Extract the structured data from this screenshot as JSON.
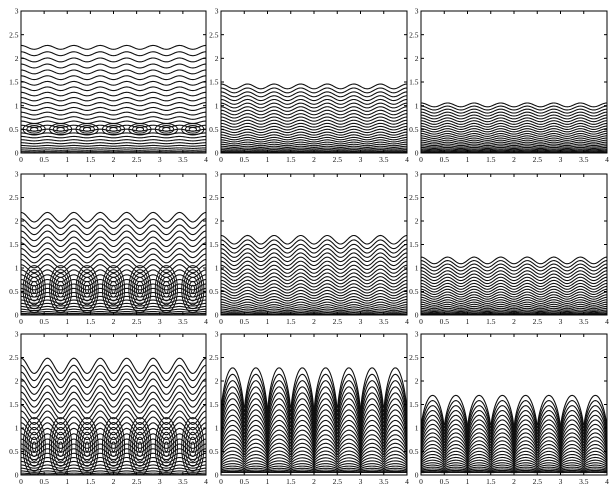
{
  "figure": {
    "rows": 3,
    "cols": 3
  },
  "colors": {
    "line": "#111111",
    "frame": "#000000",
    "background": "#ffffff"
  },
  "chart_data": [
    {
      "type": "line",
      "panel": "row1-col1",
      "xlim": [
        0,
        4
      ],
      "ylim": [
        0,
        3
      ],
      "xticks": [
        "0",
        "0.5",
        "1",
        "1.5",
        "2",
        "2.5",
        "3",
        "3.5",
        "4"
      ],
      "yticks": [
        "0",
        "0.5",
        "1",
        "1.5",
        "2",
        "2.5",
        "3"
      ],
      "contour_family": "streamlines",
      "top_level": 2.3,
      "line_count": 26,
      "periods": 7,
      "wave_amplitude": 0.04,
      "closed_cells": true,
      "cell_center_y": 0.5
    },
    {
      "type": "line",
      "panel": "row1-col2",
      "xlim": [
        0,
        4
      ],
      "ylim": [
        0,
        3
      ],
      "xticks": [
        "0",
        "0.5",
        "1",
        "1.5",
        "2",
        "2.5",
        "3",
        "3.5",
        "4"
      ],
      "yticks": [
        "0",
        "0.5",
        "1",
        "1.5",
        "2",
        "2.5",
        "3"
      ],
      "contour_family": "streamlines",
      "top_level": 1.45,
      "line_count": 26,
      "periods": 7,
      "wave_amplitude": 0.05,
      "closed_cells": false
    },
    {
      "type": "line",
      "panel": "row1-col3",
      "xlim": [
        0,
        4
      ],
      "ylim": [
        0,
        3
      ],
      "xticks": [
        "0",
        "0.5",
        "1",
        "1.5",
        "2",
        "2.5",
        "3",
        "3.5",
        "4"
      ],
      "yticks": [
        "0",
        "0.5",
        "1",
        "1.5",
        "2",
        "2.5",
        "3"
      ],
      "contour_family": "streamlines",
      "top_level": 1.05,
      "line_count": 24,
      "periods": 7,
      "wave_amplitude": 0.04,
      "closed_cells": false
    },
    {
      "type": "line",
      "panel": "row2-col1",
      "xlim": [
        0,
        4
      ],
      "ylim": [
        0,
        3
      ],
      "xticks": [
        "0",
        "0.5",
        "1",
        "1.5",
        "2",
        "2.5",
        "3",
        "3.5",
        "4"
      ],
      "yticks": [
        "0",
        "0.5",
        "1",
        "1.5",
        "2",
        "2.5",
        "3"
      ],
      "contour_family": "streamlines",
      "top_level": 2.15,
      "line_count": 24,
      "periods": 7,
      "wave_amplitude": 0.1,
      "closed_cells": true,
      "cell_center_y": 0.55
    },
    {
      "type": "line",
      "panel": "row2-col2",
      "xlim": [
        0,
        4
      ],
      "ylim": [
        0,
        3
      ],
      "xticks": [
        "0",
        "0.5",
        "1",
        "1.5",
        "2",
        "2.5",
        "3",
        "3.5",
        "4"
      ],
      "yticks": [
        "0",
        "0.5",
        "1",
        "1.5",
        "2",
        "2.5",
        "3"
      ],
      "contour_family": "streamlines",
      "top_level": 1.65,
      "line_count": 26,
      "periods": 7,
      "wave_amplitude": 0.09,
      "closed_cells": false
    },
    {
      "type": "line",
      "panel": "row2-col3",
      "xlim": [
        0,
        4
      ],
      "ylim": [
        0,
        3
      ],
      "xticks": [
        "0",
        "0.5",
        "1",
        "1.5",
        "2",
        "2.5",
        "3",
        "3.5",
        "4"
      ],
      "yticks": [
        "0",
        "0.5",
        "1",
        "1.5",
        "2",
        "2.5",
        "3"
      ],
      "contour_family": "streamlines",
      "top_level": 1.2,
      "line_count": 24,
      "periods": 7,
      "wave_amplitude": 0.07,
      "closed_cells": false
    },
    {
      "type": "line",
      "panel": "row3-col1",
      "xlim": [
        0,
        4
      ],
      "ylim": [
        0,
        3
      ],
      "xticks": [
        "0",
        "0.5",
        "1",
        "1.5",
        "2",
        "2.5",
        "3",
        "3.5",
        "4"
      ],
      "yticks": [
        "0",
        "0.5",
        "1",
        "1.5",
        "2",
        "2.5",
        "3"
      ],
      "contour_family": "streamlines",
      "top_level": 2.4,
      "line_count": 24,
      "periods": 7,
      "wave_amplitude": 0.16,
      "closed_cells": true,
      "cell_center_y": 0.6
    },
    {
      "type": "line",
      "panel": "row3-col2",
      "xlim": [
        0,
        4
      ],
      "ylim": [
        0,
        3
      ],
      "xticks": [
        "0",
        "0.5",
        "1",
        "1.5",
        "2",
        "2.5",
        "3",
        "3.5",
        "4"
      ],
      "yticks": [
        "0",
        "0.5",
        "1",
        "1.5",
        "2",
        "2.5",
        "3"
      ],
      "contour_family": "arches",
      "top_level": 2.3,
      "line_count": 26,
      "periods": 8,
      "wave_amplitude": 0.0,
      "closed_cells": false
    },
    {
      "type": "line",
      "panel": "row3-col3",
      "xlim": [
        0,
        4
      ],
      "ylim": [
        0,
        3
      ],
      "xticks": [
        "0",
        "0.5",
        "1",
        "1.5",
        "2",
        "2.5",
        "3",
        "3.5",
        "4"
      ],
      "yticks": [
        "0",
        "0.5",
        "1",
        "1.5",
        "2",
        "2.5",
        "3"
      ],
      "contour_family": "arches",
      "top_level": 1.7,
      "line_count": 24,
      "periods": 8,
      "wave_amplitude": 0.0,
      "closed_cells": false
    }
  ]
}
